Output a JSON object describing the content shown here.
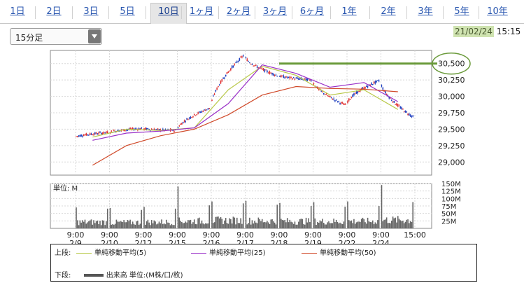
{
  "tabs": [
    {
      "label": "1日",
      "active": false
    },
    {
      "label": "2日",
      "active": false
    },
    {
      "label": "3日",
      "active": false
    },
    {
      "label": "5日",
      "active": false
    },
    {
      "label": "10日",
      "active": true
    },
    {
      "label": "1ヶ月",
      "active": false
    },
    {
      "label": "2ヶ月",
      "active": false
    },
    {
      "label": "3ヶ月",
      "active": false
    },
    {
      "label": "6ヶ月",
      "active": false
    },
    {
      "label": "1年",
      "active": false
    },
    {
      "label": "2年",
      "active": false
    },
    {
      "label": "3年",
      "active": false
    },
    {
      "label": "5年",
      "active": false
    },
    {
      "label": "10年",
      "active": false
    }
  ],
  "interval_select": {
    "value": "15分足"
  },
  "timestamp": {
    "date": "21/02/24",
    "time": "15:15"
  },
  "colors": {
    "up": "#e03030",
    "down": "#2040c0",
    "ma5": "#b9c94a",
    "ma25": "#9a30c8",
    "ma50": "#d04a2a",
    "volume": "#666666",
    "highlight": "#6a9a3a"
  },
  "chart_data": [
    {
      "type": "candlestick",
      "ylim": [
        28800,
        30700
      ],
      "yticks": [
        29000,
        29250,
        29500,
        29750,
        30000,
        30250,
        30500
      ],
      "ytick_labels": [
        "29,000",
        "29,250",
        "29,500",
        "29,750",
        "30,000",
        "30,250",
        "30,500"
      ],
      "x_session_labels": [
        {
          "time": "9:00",
          "date": "2/9"
        },
        {
          "time": "9:00",
          "date": "2/10"
        },
        {
          "time": "9:00",
          "date": "2/12"
        },
        {
          "time": "9:00",
          "date": "2/15"
        },
        {
          "time": "9:00",
          "date": "2/16"
        },
        {
          "time": "9:00",
          "date": "2/17"
        },
        {
          "time": "9:00",
          "date": "2/18"
        },
        {
          "time": "9:00",
          "date": "2/19"
        },
        {
          "time": "9:00",
          "date": "2/22"
        },
        {
          "time": "9:00",
          "date": "2/24"
        },
        {
          "time": "15:00",
          "date": ""
        }
      ],
      "session_close": [
        29450,
        29510,
        29480,
        29820,
        30620,
        30320,
        30250,
        29870,
        30240,
        29690
      ],
      "highlight_level": {
        "value": 30500,
        "label": "30,500"
      },
      "series": [
        {
          "name": "単純移動平均(5)",
          "values": [
            29380,
            29500,
            29480,
            29520,
            30100,
            30460,
            30320,
            30020,
            30100,
            29800
          ]
        },
        {
          "name": "単純移動平均(25)",
          "values": [
            29330,
            29440,
            29470,
            29520,
            29890,
            30480,
            30350,
            30140,
            30210,
            29920
          ]
        },
        {
          "name": "単純移動平均(50)",
          "values": [
            28950,
            29250,
            29400,
            29500,
            29720,
            30020,
            30150,
            30120,
            30110,
            30070
          ]
        }
      ]
    },
    {
      "type": "bar",
      "title": "単位: M",
      "ylim": [
        0,
        150
      ],
      "yticks": [
        25,
        50,
        75,
        100,
        125,
        150
      ],
      "ytick_labels": [
        "25M",
        "50M",
        "75M",
        "100M",
        "125M",
        "150M"
      ],
      "session_open_volume": [
        70,
        68,
        72,
        140,
        90,
        92,
        85,
        88,
        90,
        145
      ],
      "typical_volume": [
        30,
        28,
        30,
        35,
        38,
        36,
        34,
        33,
        34,
        40
      ]
    }
  ],
  "legend": {
    "upper_label": "上段:",
    "lower_label": "下段:",
    "items": [
      {
        "name": "単純移動平均(5)"
      },
      {
        "name": "単純移動平均(25)"
      },
      {
        "name": "単純移動平均(50)"
      }
    ],
    "volume_label": "出来高 単位:(M株/口/枚)"
  }
}
